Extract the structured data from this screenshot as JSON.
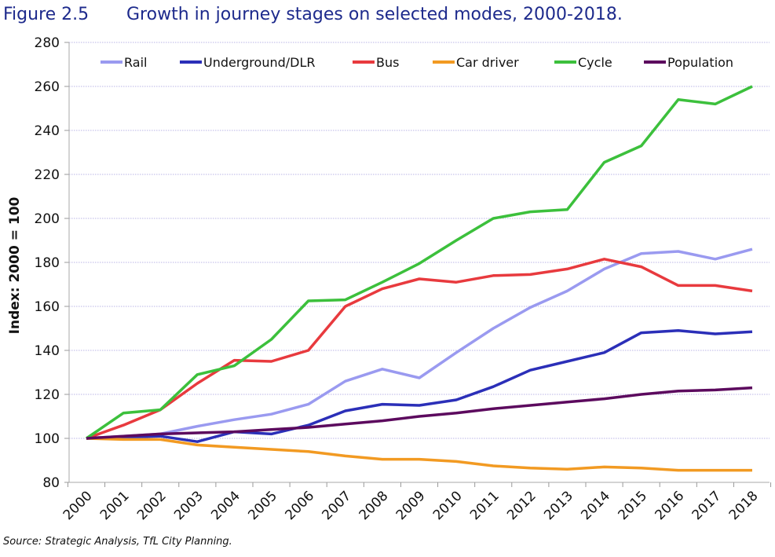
{
  "figure": {
    "number": "Figure 2.5",
    "title": "Growth in journey stages on selected modes, 2000-2018.",
    "source": "Source: Strategic Analysis, TfL City Planning."
  },
  "chart_data": {
    "type": "line",
    "title": "Growth in journey stages on selected modes, 2000-2018.",
    "xlabel": "",
    "ylabel": "Index: 2000 = 100",
    "ylim": [
      80,
      280
    ],
    "yticks": [
      80,
      100,
      120,
      140,
      160,
      180,
      200,
      220,
      240,
      260,
      280
    ],
    "grid": true,
    "legend_position": "top",
    "x": [
      "2000",
      "2001",
      "2002",
      "2003",
      "2004",
      "2005",
      "2006",
      "2007",
      "2008",
      "2009",
      "2010",
      "2011",
      "2012",
      "2013",
      "2014",
      "2015",
      "2016",
      "2017",
      "2018"
    ],
    "series": [
      {
        "name": "Rail",
        "color": "#9a9af0",
        "values": [
          100,
          101,
          102,
          105.5,
          108.5,
          111,
          115.5,
          126,
          131.5,
          127.5,
          139,
          150,
          159.5,
          167,
          177,
          184,
          185,
          181.5,
          186
        ]
      },
      {
        "name": "Underground/DLR",
        "color": "#2b2fb8",
        "values": [
          100,
          100.5,
          101,
          98.5,
          103,
          102,
          106,
          112.5,
          115.5,
          115,
          117.5,
          123.5,
          131,
          135,
          139,
          148,
          149,
          147.5,
          148.5
        ]
      },
      {
        "name": "Bus",
        "color": "#e83a3e",
        "values": [
          100,
          106,
          113,
          125,
          135.5,
          135,
          140,
          160,
          168,
          172.5,
          171,
          174,
          174.5,
          177,
          181.5,
          178,
          169.5,
          169.5,
          167
        ]
      },
      {
        "name": "Car driver",
        "color": "#f29a22",
        "values": [
          100,
          99.5,
          99.5,
          97,
          96,
          95,
          94,
          92,
          90.5,
          90.5,
          89.5,
          87.5,
          86.5,
          86,
          87,
          86.5,
          85.5,
          85.5,
          85.5
        ]
      },
      {
        "name": "Cycle",
        "color": "#3cc03c",
        "values": [
          100,
          111.5,
          113,
          129,
          133,
          145,
          162.5,
          163,
          171,
          179.5,
          190,
          200,
          203,
          204,
          225.5,
          233,
          254,
          252,
          260
        ]
      },
      {
        "name": "Population",
        "color": "#5c0a5e",
        "values": [
          100,
          101,
          102,
          102.5,
          103,
          104,
          105,
          106.5,
          108,
          110,
          111.5,
          113.5,
          115,
          116.5,
          118,
          120,
          121.5,
          122,
          123
        ]
      }
    ]
  }
}
